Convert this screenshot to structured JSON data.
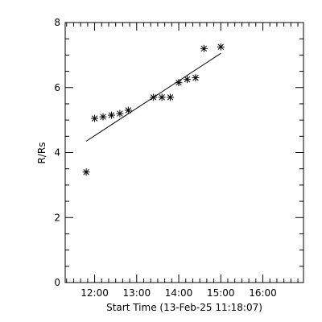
{
  "chart_data": {
    "type": "scatter",
    "title": "",
    "xlabel": "Start Time (13-Feb-25 11:18:07)",
    "ylabel": "R/Rs",
    "xlim": [
      "11:18",
      "16:58"
    ],
    "ylim": [
      0,
      8
    ],
    "x_tick_labels": [
      "12:00",
      "13:00",
      "14:00",
      "15:00",
      "16:00"
    ],
    "x_ticks": [
      "12:00",
      "13:00",
      "14:00",
      "15:00",
      "16:00"
    ],
    "y_tick_labels": [
      "0",
      "2",
      "4",
      "6",
      "8"
    ],
    "y_ticks": [
      0,
      2,
      4,
      6,
      8
    ],
    "grid": false,
    "marker": "asterisk",
    "series": [
      {
        "x": [
          "11:48",
          "12:00",
          "12:12",
          "12:24",
          "12:36",
          "12:48",
          "13:24",
          "13:36",
          "13:48",
          "14:00",
          "14:12",
          "14:24",
          "14:36",
          "15:00"
        ],
        "y": [
          3.4,
          5.05,
          5.1,
          5.15,
          5.2,
          5.3,
          5.7,
          5.7,
          5.7,
          6.15,
          6.25,
          6.3,
          7.2,
          7.25
        ]
      }
    ],
    "fit_line": {
      "x": [
        "11:48",
        "15:00"
      ],
      "y": [
        4.35,
        7.05
      ]
    }
  }
}
